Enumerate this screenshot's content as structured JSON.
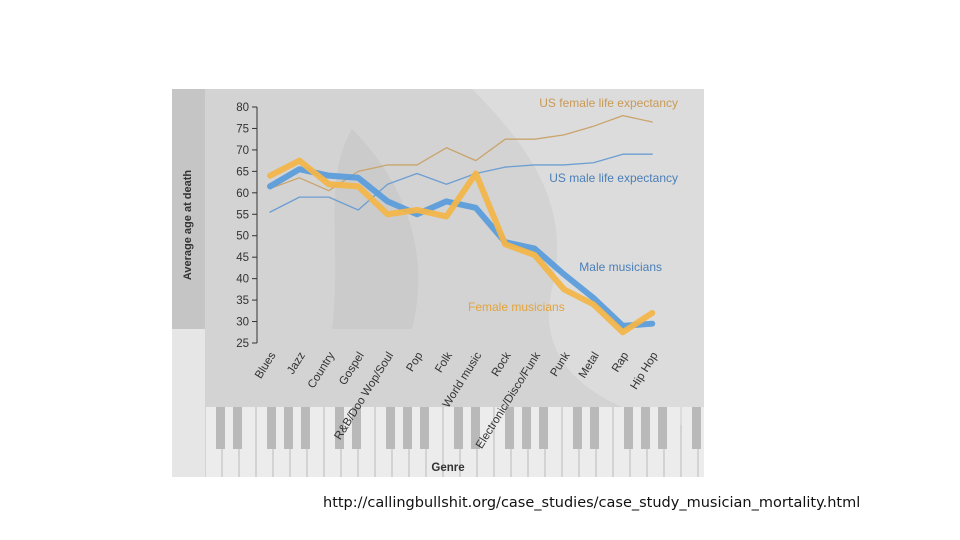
{
  "chart_data": {
    "type": "line",
    "categories": [
      "Blues",
      "Jazz",
      "Country",
      "Gospel",
      "R&B/Doo Wop/Soul",
      "Pop",
      "Folk",
      "World music",
      "Rock",
      "Electronic/Disco/Funk",
      "Punk",
      "Metal",
      "Rap",
      "Hip Hop"
    ],
    "xlabel": "Genre",
    "ylabel": "Average age at death",
    "ylim": [
      25,
      80
    ],
    "yticks": [
      25,
      30,
      35,
      40,
      45,
      50,
      55,
      60,
      65,
      70,
      75,
      80
    ],
    "grid": false,
    "series": [
      {
        "name": "US female life expectancy",
        "color": "#c9a46c",
        "width": 1.3,
        "values": [
          61,
          63.5,
          60.5,
          65,
          66.5,
          66.5,
          70.5,
          67.5,
          72.5,
          72.5,
          73.5,
          75.5,
          78,
          76.5
        ]
      },
      {
        "name": "US male life expectancy",
        "color": "#6c9ed2",
        "width": 1.3,
        "values": [
          55.5,
          59,
          59,
          56,
          62,
          64.5,
          62,
          64.5,
          66,
          66.5,
          66.5,
          67,
          69,
          69
        ]
      },
      {
        "name": "Male musicians",
        "color": "#5c9ddb",
        "width": 6,
        "values": [
          61.5,
          65.5,
          64,
          63.5,
          58,
          55,
          58,
          56.5,
          48.5,
          47,
          41,
          35.5,
          29,
          29.5
        ]
      },
      {
        "name": "Female musicians",
        "color": "#f2b54a",
        "width": 6,
        "values": [
          64,
          67.5,
          62,
          61.5,
          55,
          56,
          54.5,
          64.5,
          48,
          45.5,
          37.5,
          34,
          27.5,
          32
        ]
      }
    ]
  },
  "source": {
    "url": "http://callingbullshit.org/case_studies/case_study_musician_mortality.html"
  }
}
